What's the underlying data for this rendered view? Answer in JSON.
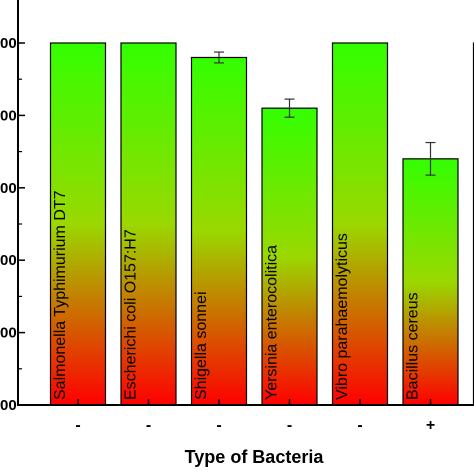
{
  "chart_data": {
    "type": "bar",
    "categories": [
      "Salmonella Typhimurium DT7",
      "Escherichi coli O157:H7",
      "Shigella sonnei",
      "Yersinia enterocolitica",
      "Vibro parahaemolyticus",
      "Bacillus cereus",
      ""
    ],
    "gram_stain": [
      "-",
      "-",
      "-",
      "-",
      "-",
      "+",
      ""
    ],
    "values": [
      100,
      100,
      96,
      82,
      100,
      68,
      100
    ],
    "errors": [
      0,
      0,
      1.5,
      2.5,
      0,
      4.5,
      0
    ],
    "ylim": [
      0,
      100
    ],
    "yticks": [
      0,
      20,
      40,
      60,
      80,
      100
    ],
    "ytick_labels": [
      "00",
      "00",
      "00",
      "00",
      "00",
      "00"
    ],
    "title": "",
    "xlabel": "Type of Bacteria",
    "ylabel": "",
    "colors": {
      "bar_top": "#33ff00",
      "bar_bottom": "#ff0000",
      "outline": "#000000"
    }
  }
}
